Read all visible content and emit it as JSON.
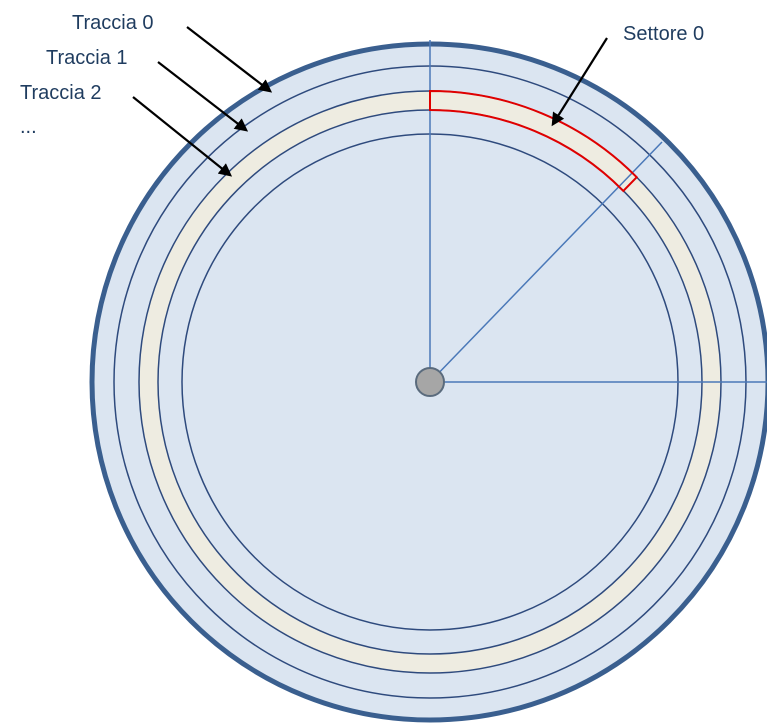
{
  "labels": {
    "track_0": "Traccia 0",
    "track_1": "Traccia 1",
    "track_2": "Traccia 2",
    "more_tracks": "...",
    "sector_0": "Settore 0"
  },
  "colors": {
    "disk_fill": "#dbe5f1",
    "disk_border": "#3a5f8f",
    "track_line": "#2e4a7d",
    "highlight_track_fill": "#eeece1",
    "sector_outline": "#e00000",
    "radial_line": "#4a78b8",
    "hub_fill": "#a6a6a6",
    "hub_stroke": "#5a6b7d",
    "text": "#1f3c5f",
    "arrow": "#000000"
  }
}
